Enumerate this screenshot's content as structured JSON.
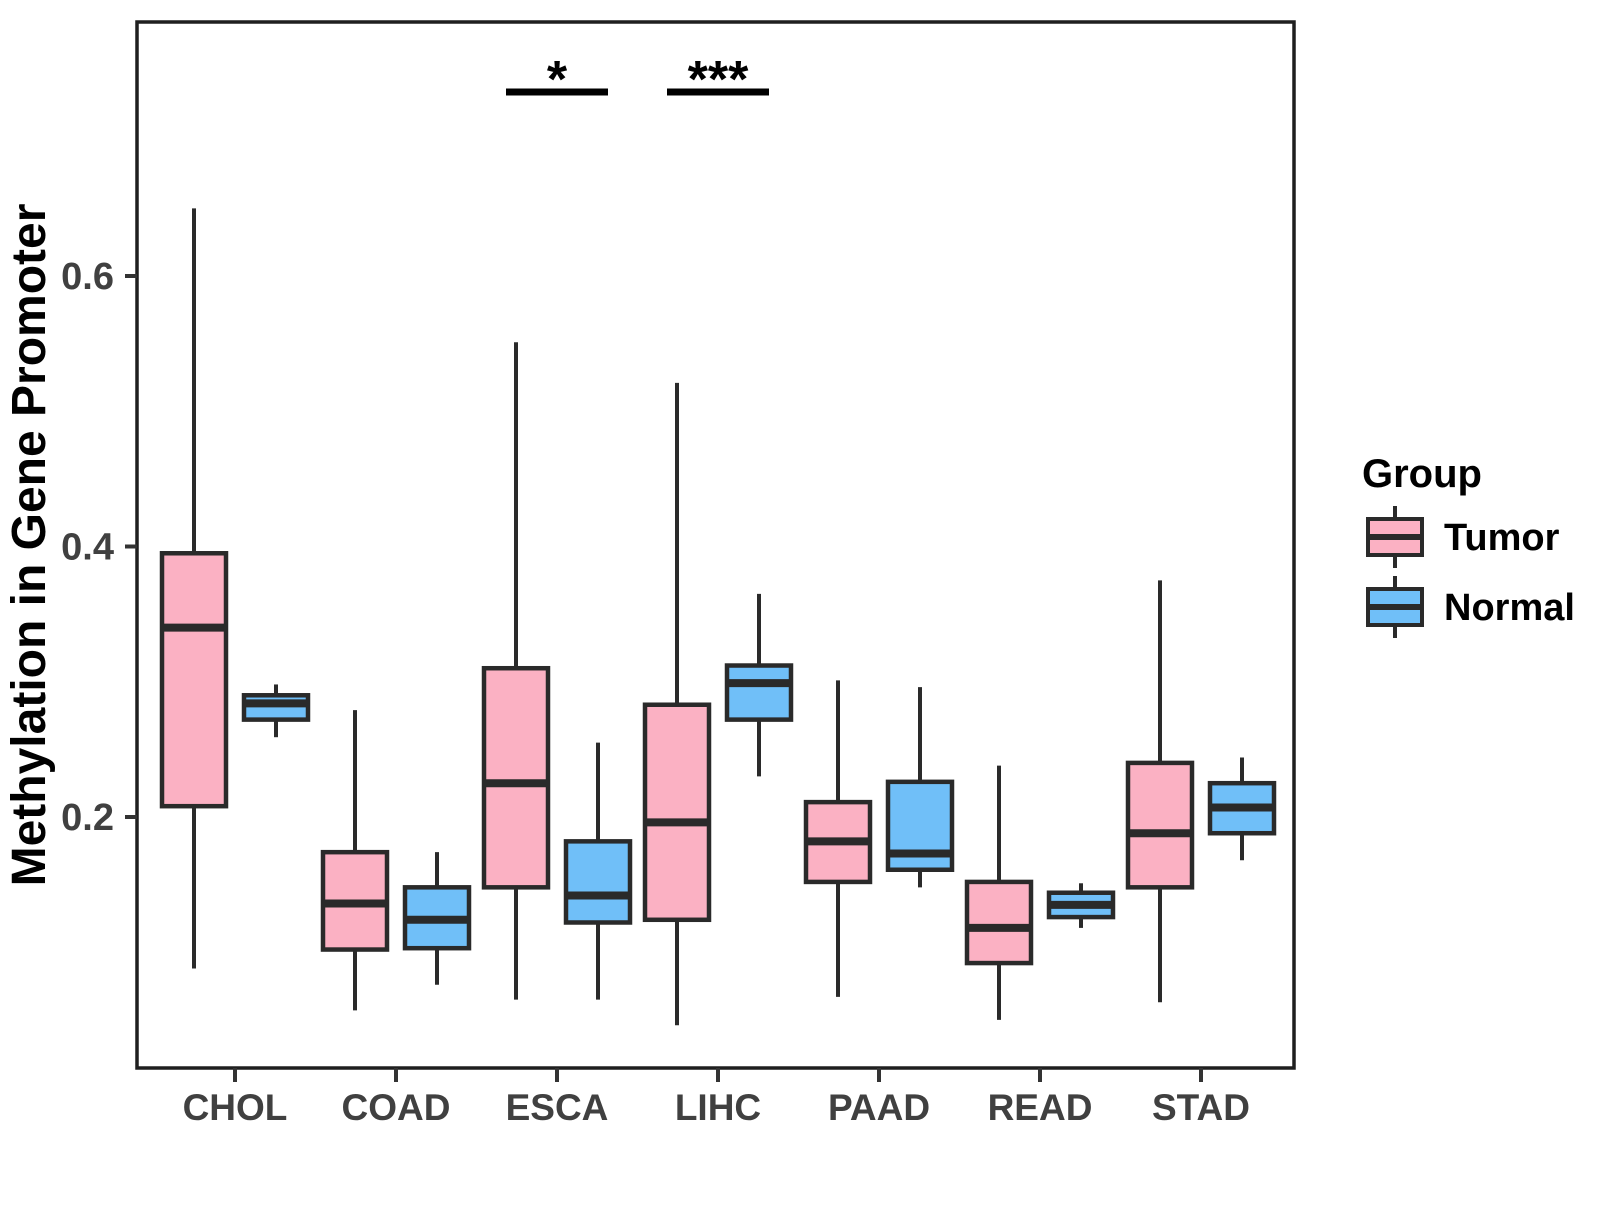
{
  "chart_data": {
    "type": "grouped_boxplot",
    "title": "",
    "xlabel": "",
    "ylabel": "Methylation in Gene Promoter",
    "categories": [
      "CHOL",
      "COAD",
      "ESCA",
      "LIHC",
      "PAAD",
      "READ",
      "STAD"
    ],
    "y_axis": {
      "ticks": [
        0.2,
        0.4,
        0.6
      ],
      "tick_labels": [
        "0.2",
        "0.4",
        "0.6"
      ],
      "range": [
        0.014,
        0.788
      ],
      "grid": false
    },
    "colors": {
      "tumor_fill": "#FBB1C3",
      "normal_fill": "#70BFF8",
      "stroke_dark": "#2A2A2A",
      "axis_text": "#404040",
      "panel_border": "#1F1F1F",
      "annotation": "#000000"
    },
    "legend": {
      "title": "Group",
      "position": "right",
      "entries": [
        {
          "label": "Tumor",
          "color": "#FBB1C3"
        },
        {
          "label": "Normal",
          "color": "#70BFF8"
        }
      ]
    },
    "series": [
      {
        "name": "Tumor",
        "color": "#FBB1C3",
        "boxes": [
          {
            "category": "CHOL",
            "lo": 0.088,
            "q1": 0.208,
            "med": 0.34,
            "q3": 0.395,
            "hi": 0.65
          },
          {
            "category": "COAD",
            "lo": 0.057,
            "q1": 0.102,
            "med": 0.136,
            "q3": 0.174,
            "hi": 0.279
          },
          {
            "category": "ESCA",
            "lo": 0.065,
            "q1": 0.148,
            "med": 0.225,
            "q3": 0.31,
            "hi": 0.551
          },
          {
            "category": "LIHC",
            "lo": 0.046,
            "q1": 0.124,
            "med": 0.196,
            "q3": 0.283,
            "hi": 0.521
          },
          {
            "category": "PAAD",
            "lo": 0.067,
            "q1": 0.152,
            "med": 0.182,
            "q3": 0.211,
            "hi": 0.301
          },
          {
            "category": "READ",
            "lo": 0.05,
            "q1": 0.092,
            "med": 0.118,
            "q3": 0.152,
            "hi": 0.238
          },
          {
            "category": "STAD",
            "lo": 0.063,
            "q1": 0.148,
            "med": 0.188,
            "q3": 0.24,
            "hi": 0.375
          }
        ]
      },
      {
        "name": "Normal",
        "color": "#70BFF8",
        "boxes": [
          {
            "category": "CHOL",
            "lo": 0.259,
            "q1": 0.272,
            "med": 0.284,
            "q3": 0.29,
            "hi": 0.298
          },
          {
            "category": "COAD",
            "lo": 0.076,
            "q1": 0.103,
            "med": 0.124,
            "q3": 0.148,
            "hi": 0.174
          },
          {
            "category": "ESCA",
            "lo": 0.065,
            "q1": 0.122,
            "med": 0.142,
            "q3": 0.182,
            "hi": 0.255
          },
          {
            "category": "LIHC",
            "lo": 0.23,
            "q1": 0.272,
            "med": 0.299,
            "q3": 0.312,
            "hi": 0.365
          },
          {
            "category": "PAAD",
            "lo": 0.148,
            "q1": 0.161,
            "med": 0.173,
            "q3": 0.226,
            "hi": 0.296
          },
          {
            "category": "READ",
            "lo": 0.118,
            "q1": 0.126,
            "med": 0.135,
            "q3": 0.144,
            "hi": 0.151
          },
          {
            "category": "STAD",
            "lo": 0.168,
            "q1": 0.188,
            "med": 0.207,
            "q3": 0.225,
            "hi": 0.244
          }
        ]
      }
    ],
    "annotations": [
      {
        "category": "ESCA",
        "label": "*"
      },
      {
        "category": "LIHC",
        "label": "***"
      }
    ]
  }
}
